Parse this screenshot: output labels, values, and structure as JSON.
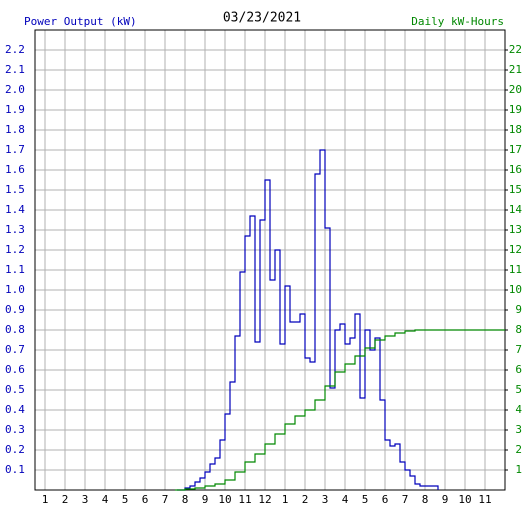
{
  "chart_data": {
    "type": "line",
    "title": "03/23/2021",
    "y_label": "Power Output (kW)",
    "y2_label": "Daily kW-Hours",
    "step": true,
    "grid": true,
    "xlim": [
      0.5,
      24
    ],
    "xticks": [
      1,
      2,
      3,
      4,
      5,
      6,
      7,
      8,
      9,
      10,
      11,
      12,
      {
        "value": 13,
        "label": "1"
      },
      {
        "value": 14,
        "label": "2"
      },
      {
        "value": 15,
        "label": "3"
      },
      {
        "value": 16,
        "label": "4"
      },
      {
        "value": 17,
        "label": "5"
      },
      {
        "value": 18,
        "label": "6"
      },
      {
        "value": 19,
        "label": "7"
      },
      {
        "value": 20,
        "label": "8"
      },
      {
        "value": 21,
        "label": "9"
      },
      {
        "value": 22,
        "label": "10"
      },
      {
        "value": 23,
        "label": "11"
      }
    ],
    "ylim": [
      0,
      2.3
    ],
    "yticks": [
      0.1,
      0.2,
      0.3,
      0.4,
      0.5,
      0.6,
      0.7,
      0.8,
      0.9,
      {
        "value": 1,
        "label": "1.0"
      },
      1.1,
      1.2,
      1.3,
      1.4,
      1.5,
      1.6,
      1.7,
      1.8,
      1.9,
      {
        "value": 2,
        "label": "2.0"
      },
      2.1,
      2.2
    ],
    "y2lim": [
      0,
      23
    ],
    "y2ticks": [
      1,
      2,
      3,
      4,
      5,
      6,
      7,
      8,
      9,
      10,
      11,
      12,
      13,
      14,
      15,
      16,
      17,
      18,
      19,
      20,
      21,
      22
    ],
    "series": [
      {
        "name": "Power Output (kW)",
        "color": "#0000bb",
        "x": [
          7.6,
          8,
          8.25,
          8.5,
          8.75,
          9,
          9.25,
          9.5,
          9.75,
          10,
          10.25,
          10.5,
          10.75,
          11,
          11.25,
          11.5,
          11.75,
          12,
          12.25,
          12.5,
          12.75,
          13,
          13.25,
          13.5,
          13.75,
          14,
          14.25,
          14.5,
          14.75,
          15,
          15.25,
          15.5,
          15.75,
          16,
          16.25,
          16.5,
          16.75,
          17,
          17.25,
          17.5,
          17.75,
          18,
          18.25,
          18.5,
          18.75,
          19,
          19.25,
          19.5,
          19.75,
          20,
          20.25,
          20.5,
          20.65
        ],
        "values": [
          0,
          0.01,
          0.02,
          0.04,
          0.06,
          0.09,
          0.13,
          0.16,
          0.25,
          0.38,
          0.54,
          0.77,
          1.09,
          1.27,
          1.37,
          0.74,
          1.35,
          1.55,
          1.05,
          1.2,
          0.73,
          1.02,
          0.84,
          0.84,
          0.88,
          0.66,
          0.64,
          1.58,
          1.7,
          1.31,
          0.51,
          0.8,
          0.83,
          0.73,
          0.76,
          0.88,
          0.46,
          0.8,
          0.7,
          0.76,
          0.45,
          0.25,
          0.22,
          0.23,
          0.14,
          0.1,
          0.07,
          0.03,
          0.02,
          0.02,
          0.02,
          0.02,
          0
        ]
      },
      {
        "name": "Daily kW-Hours",
        "color": "#008800",
        "axis": "y2",
        "x": [
          7.5,
          8,
          8.5,
          9,
          9.5,
          10,
          10.5,
          11,
          11.5,
          12,
          12.5,
          13,
          13.5,
          14,
          14.5,
          15,
          15.5,
          16,
          16.5,
          17,
          17.5,
          18,
          18.5,
          19,
          19.5,
          20,
          24
        ],
        "values": [
          0,
          0.05,
          0.1,
          0.2,
          0.3,
          0.5,
          0.9,
          1.4,
          1.8,
          2.3,
          2.8,
          3.3,
          3.7,
          4,
          4.5,
          5.2,
          5.9,
          6.3,
          6.7,
          7.1,
          7.5,
          7.7,
          7.85,
          7.95,
          8,
          8,
          8
        ]
      }
    ]
  }
}
